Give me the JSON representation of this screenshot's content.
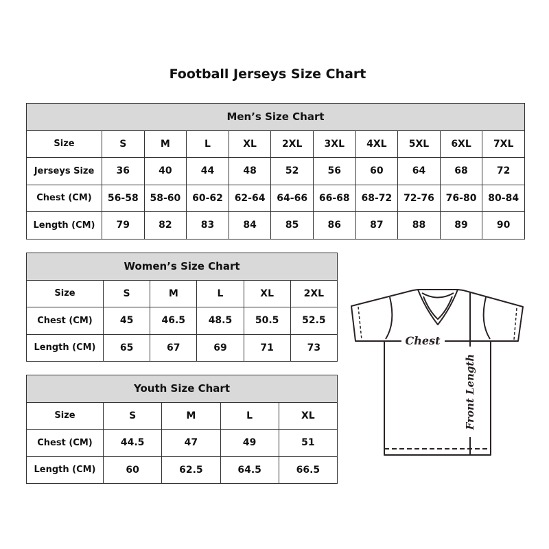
{
  "title": "Football Jerseys Size Chart",
  "mens": {
    "title": "Men’s Size Chart",
    "rows": [
      {
        "label": "Size",
        "values": [
          "S",
          "M",
          "L",
          "XL",
          "2XL",
          "3XL",
          "4XL",
          "5XL",
          "6XL",
          "7XL"
        ]
      },
      {
        "label": "Jerseys Size",
        "values": [
          "36",
          "40",
          "44",
          "48",
          "52",
          "56",
          "60",
          "64",
          "68",
          "72"
        ]
      },
      {
        "label": "Chest (CM)",
        "values": [
          "56-58",
          "58-60",
          "60-62",
          "62-64",
          "64-66",
          "66-68",
          "68-72",
          "72-76",
          "76-80",
          "80-84"
        ]
      },
      {
        "label": "Length (CM)",
        "values": [
          "79",
          "82",
          "83",
          "84",
          "85",
          "86",
          "87",
          "88",
          "89",
          "90"
        ]
      }
    ]
  },
  "womens": {
    "title": "Women’s Size Chart",
    "rows": [
      {
        "label": "Size",
        "values": [
          "S",
          "M",
          "L",
          "XL",
          "2XL"
        ]
      },
      {
        "label": "Chest (CM)",
        "values": [
          "45",
          "46.5",
          "48.5",
          "50.5",
          "52.5"
        ]
      },
      {
        "label": "Length (CM)",
        "values": [
          "65",
          "67",
          "69",
          "71",
          "73"
        ]
      }
    ]
  },
  "youth": {
    "title": "Youth Size Chart",
    "rows": [
      {
        "label": "Size",
        "values": [
          "S",
          "M",
          "L",
          "XL"
        ]
      },
      {
        "label": "Chest (CM)",
        "values": [
          "44.5",
          "47",
          "49",
          "51"
        ]
      },
      {
        "label": "Length (CM)",
        "values": [
          "60",
          "62.5",
          "64.5",
          "66.5"
        ]
      }
    ]
  },
  "diagram": {
    "chest_label": "Chest",
    "length_label": "Front Length"
  },
  "colors": {
    "header_bg": "#d9d9d9",
    "border": "#333333"
  }
}
